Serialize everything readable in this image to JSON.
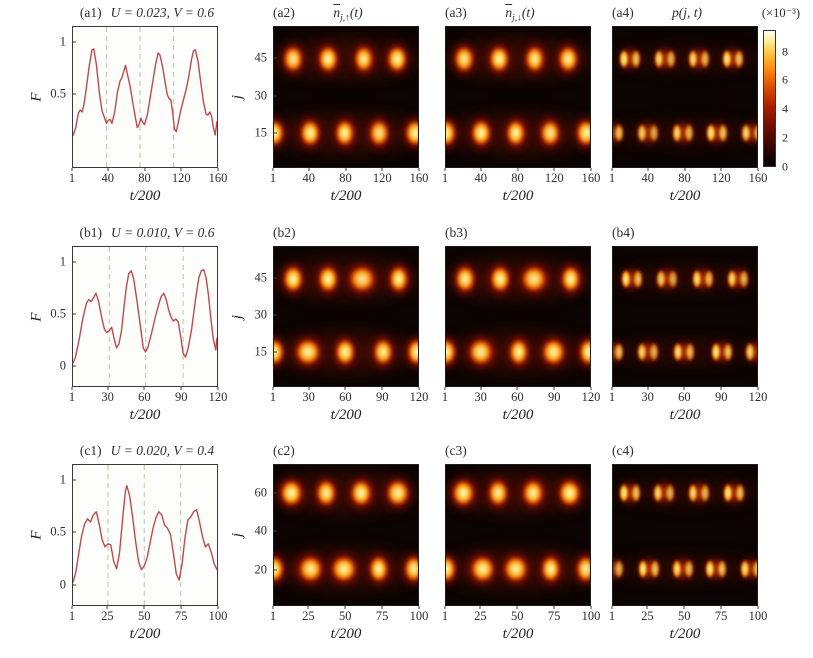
{
  "figure": {
    "curve_color": "#bf4a4a",
    "dashed_color": "#b9ccb4",
    "heat_background": "#0b0402",
    "text_color": "#2e2e2e"
  },
  "colorbar": {
    "label": "(×10⁻³)",
    "max": 9.5,
    "ticks": [
      {
        "v": 0,
        "label": "0"
      },
      {
        "v": 2,
        "label": "2"
      },
      {
        "v": 4,
        "label": "4"
      },
      {
        "v": 6,
        "label": "6"
      },
      {
        "v": 8,
        "label": "8"
      }
    ]
  },
  "chart_data": [
    {
      "id": "a1",
      "type": "line",
      "label": "(a1)",
      "params": "U = 0.023,  V = 0.6",
      "xlabel": "t/200",
      "ylabel": "F",
      "xlim": [
        1,
        160
      ],
      "ylim": [
        -0.2,
        1.15
      ],
      "x_ticks": [
        1,
        40,
        80,
        120,
        160
      ],
      "y_ticks": [
        {
          "v": 1,
          "label": "1"
        },
        {
          "v": 0.5,
          "label": "0.5"
        }
      ],
      "dashed_x": [
        38,
        75,
        112
      ],
      "curve": [
        [
          1,
          0.1
        ],
        [
          4,
          0.18
        ],
        [
          7,
          0.32
        ],
        [
          9,
          0.35
        ],
        [
          11,
          0.33
        ],
        [
          13,
          0.4
        ],
        [
          16,
          0.58
        ],
        [
          19,
          0.78
        ],
        [
          22,
          0.93
        ],
        [
          24,
          0.94
        ],
        [
          27,
          0.78
        ],
        [
          30,
          0.52
        ],
        [
          33,
          0.34
        ],
        [
          36,
          0.27
        ],
        [
          38,
          0.22
        ],
        [
          40,
          0.25
        ],
        [
          42,
          0.26
        ],
        [
          44,
          0.22
        ],
        [
          47,
          0.33
        ],
        [
          50,
          0.52
        ],
        [
          53,
          0.63
        ],
        [
          55,
          0.66
        ],
        [
          57,
          0.72
        ],
        [
          59,
          0.78
        ],
        [
          61,
          0.7
        ],
        [
          64,
          0.58
        ],
        [
          67,
          0.42
        ],
        [
          70,
          0.27
        ],
        [
          72,
          0.18
        ],
        [
          74,
          0.21
        ],
        [
          76,
          0.27
        ],
        [
          78,
          0.23
        ],
        [
          80,
          0.21
        ],
        [
          83,
          0.3
        ],
        [
          86,
          0.46
        ],
        [
          89,
          0.62
        ],
        [
          92,
          0.78
        ],
        [
          95,
          0.9
        ],
        [
          97,
          0.88
        ],
        [
          100,
          0.76
        ],
        [
          103,
          0.6
        ],
        [
          105,
          0.5
        ],
        [
          107,
          0.46
        ],
        [
          109,
          0.45
        ],
        [
          111,
          0.33
        ],
        [
          113,
          0.17
        ],
        [
          115,
          0.14
        ],
        [
          117,
          0.22
        ],
        [
          120,
          0.35
        ],
        [
          123,
          0.45
        ],
        [
          126,
          0.55
        ],
        [
          129,
          0.68
        ],
        [
          132,
          0.84
        ],
        [
          134,
          0.92
        ],
        [
          136,
          0.93
        ],
        [
          139,
          0.82
        ],
        [
          142,
          0.62
        ],
        [
          145,
          0.43
        ],
        [
          148,
          0.31
        ],
        [
          150,
          0.3
        ],
        [
          152,
          0.33
        ],
        [
          154,
          0.29
        ],
        [
          156,
          0.18
        ],
        [
          158,
          0.11
        ],
        [
          160,
          0.24
        ]
      ]
    },
    {
      "id": "a2",
      "type": "heatmap",
      "label": "(a2)",
      "title": {
        "main": "n",
        "bar": true,
        "sub": "j,↑",
        "tail": "(t)"
      },
      "xlabel": "t/200",
      "ylabel": "j",
      "xlim": [
        1,
        160
      ],
      "jlim": [
        1,
        58
      ],
      "x_ticks": [
        1,
        40,
        80,
        120,
        160
      ],
      "y_ticks": [
        15,
        30,
        45
      ],
      "blob": "single",
      "upper": {
        "j": 45,
        "t": [
          22,
          61,
          100,
          137
        ],
        "i": [
          0.9,
          1,
          0.92,
          1
        ]
      },
      "lower": {
        "j": 15,
        "t": [
          1,
          41,
          79,
          117,
          157
        ],
        "i": [
          1,
          1,
          1,
          0.88,
          1
        ]
      }
    },
    {
      "id": "a3",
      "type": "heatmap",
      "label": "(a3)",
      "title": {
        "main": "n",
        "bar": true,
        "sub": "j,↓",
        "tail": "(t)"
      },
      "xlabel": "t/200",
      "ylabel": "",
      "xlim": [
        1,
        160
      ],
      "jlim": [
        1,
        58
      ],
      "x_ticks": [
        1,
        40,
        80,
        120,
        160
      ],
      "y_ticks": null,
      "blob": "single",
      "upper": {
        "j": 45,
        "t": [
          21,
          60,
          99,
          136
        ],
        "i": [
          0.9,
          1,
          0.95,
          0.95
        ]
      },
      "lower": {
        "j": 15,
        "t": [
          1,
          40,
          78,
          116,
          156
        ],
        "i": [
          1,
          1,
          1,
          0.9,
          1
        ]
      }
    },
    {
      "id": "a4",
      "type": "heatmap",
      "label": "(a4)",
      "title": {
        "main": "p",
        "bar": false,
        "sub": "",
        "tail": "(j, t)"
      },
      "xlabel": "t/200",
      "ylabel": "",
      "xlim": [
        1,
        160
      ],
      "jlim": [
        1,
        58
      ],
      "x_ticks": [
        1,
        40,
        80,
        120,
        160
      ],
      "y_ticks": null,
      "blob": "double",
      "upper": {
        "j": 45,
        "t": [
          20,
          58,
          96,
          134
        ],
        "i": [
          1,
          0.9,
          0.92,
          1
        ]
      },
      "lower": {
        "j": 15,
        "t": [
          1,
          40,
          78,
          116,
          155
        ],
        "i": [
          1,
          0.85,
          0.92,
          1,
          0.9
        ]
      }
    },
    {
      "id": "b1",
      "type": "line",
      "label": "(b1)",
      "params": "U = 0.010,  V = 0.6",
      "xlabel": "t/200",
      "ylabel": "F",
      "xlim": [
        1,
        120
      ],
      "ylim": [
        -0.2,
        1.15
      ],
      "x_ticks": [
        1,
        30,
        60,
        90,
        120
      ],
      "y_ticks": [
        {
          "v": 1,
          "label": "1"
        },
        {
          "v": 0.5,
          "label": "0.5"
        },
        {
          "v": 0,
          "label": "0"
        }
      ],
      "dashed_x": [
        31,
        61,
        92
      ],
      "curve": [
        [
          1,
          0.02
        ],
        [
          3,
          0.08
        ],
        [
          6,
          0.25
        ],
        [
          9,
          0.45
        ],
        [
          12,
          0.6
        ],
        [
          14,
          0.64
        ],
        [
          16,
          0.62
        ],
        [
          18,
          0.66
        ],
        [
          20,
          0.7
        ],
        [
          22,
          0.63
        ],
        [
          25,
          0.45
        ],
        [
          27,
          0.35
        ],
        [
          29,
          0.32
        ],
        [
          31,
          0.34
        ],
        [
          33,
          0.37
        ],
        [
          35,
          0.26
        ],
        [
          37,
          0.17
        ],
        [
          39,
          0.21
        ],
        [
          41,
          0.33
        ],
        [
          43,
          0.55
        ],
        [
          45,
          0.75
        ],
        [
          47,
          0.89
        ],
        [
          49,
          0.92
        ],
        [
          51,
          0.85
        ],
        [
          54,
          0.62
        ],
        [
          57,
          0.35
        ],
        [
          59,
          0.17
        ],
        [
          61,
          0.13
        ],
        [
          63,
          0.18
        ],
        [
          66,
          0.32
        ],
        [
          69,
          0.47
        ],
        [
          72,
          0.6
        ],
        [
          74,
          0.67
        ],
        [
          76,
          0.7
        ],
        [
          78,
          0.64
        ],
        [
          80,
          0.54
        ],
        [
          82,
          0.47
        ],
        [
          84,
          0.43
        ],
        [
          86,
          0.45
        ],
        [
          88,
          0.42
        ],
        [
          90,
          0.28
        ],
        [
          92,
          0.12
        ],
        [
          94,
          0.08
        ],
        [
          96,
          0.16
        ],
        [
          99,
          0.35
        ],
        [
          102,
          0.62
        ],
        [
          105,
          0.85
        ],
        [
          107,
          0.92
        ],
        [
          109,
          0.93
        ],
        [
          111,
          0.85
        ],
        [
          113,
          0.68
        ],
        [
          115,
          0.45
        ],
        [
          117,
          0.25
        ],
        [
          119,
          0.15
        ],
        [
          120,
          0.27
        ]
      ]
    },
    {
      "id": "b2",
      "type": "heatmap",
      "label": "(b2)",
      "title": null,
      "xlabel": "t/200",
      "ylabel": "j",
      "xlim": [
        1,
        120
      ],
      "jlim": [
        1,
        58
      ],
      "x_ticks": [
        1,
        30,
        60,
        90,
        120
      ],
      "y_ticks": [
        15,
        30,
        45
      ],
      "blob": "single",
      "upper": {
        "j": 45,
        "t": [
          17,
          46,
          74,
          104
        ],
        "i": [
          1,
          1,
          0.85,
          1
        ],
        "s": [
          1,
          1,
          1.35,
          1
        ]
      },
      "lower": {
        "j": 15,
        "t": [
          1,
          29,
          60,
          91,
          119
        ],
        "i": [
          1,
          0.95,
          1,
          0.95,
          1
        ],
        "s": [
          1,
          1.3,
          1,
          1,
          1
        ]
      }
    },
    {
      "id": "b3",
      "type": "heatmap",
      "label": "(b3)",
      "title": null,
      "xlabel": "t/200",
      "ylabel": "",
      "xlim": [
        1,
        120
      ],
      "jlim": [
        1,
        58
      ],
      "x_ticks": [
        1,
        30,
        60,
        90,
        120
      ],
      "y_ticks": null,
      "blob": "single",
      "upper": {
        "j": 45,
        "t": [
          17,
          46,
          74,
          104
        ],
        "i": [
          0.95,
          1,
          0.88,
          1
        ],
        "s": [
          1,
          1,
          1.3,
          1
        ]
      },
      "lower": {
        "j": 15,
        "t": [
          1,
          30,
          61,
          90,
          119
        ],
        "i": [
          1,
          0.92,
          1,
          0.95,
          1
        ],
        "s": [
          1,
          1.25,
          1,
          1.2,
          1
        ]
      }
    },
    {
      "id": "b4",
      "type": "heatmap",
      "label": "(b4)",
      "title": null,
      "xlabel": "t/200",
      "ylabel": "",
      "xlim": [
        1,
        120
      ],
      "jlim": [
        1,
        58
      ],
      "x_ticks": [
        1,
        30,
        60,
        90,
        120
      ],
      "y_ticks": null,
      "blob": "double",
      "upper": {
        "j": 45,
        "t": [
          17,
          46,
          75,
          104
        ],
        "i": [
          1,
          0.85,
          0.95,
          0.9
        ]
      },
      "lower": {
        "j": 15,
        "t": [
          1,
          30,
          60,
          91,
          119
        ],
        "i": [
          1,
          0.9,
          0.95,
          1,
          0.9
        ]
      }
    },
    {
      "id": "c1",
      "type": "line",
      "label": "(c1)",
      "params": "U = 0.020,  V = 0.4",
      "xlabel": "t/200",
      "ylabel": "F",
      "xlim": [
        1,
        100
      ],
      "ylim": [
        -0.2,
        1.15
      ],
      "x_ticks": [
        1,
        25,
        50,
        75,
        100
      ],
      "y_ticks": [
        {
          "v": 1,
          "label": "1"
        },
        {
          "v": 0.5,
          "label": "0.5"
        },
        {
          "v": 0,
          "label": "0"
        }
      ],
      "dashed_x": [
        25,
        50,
        75
      ],
      "curve": [
        [
          1,
          0.02
        ],
        [
          3,
          0.12
        ],
        [
          5,
          0.3
        ],
        [
          7,
          0.47
        ],
        [
          9,
          0.58
        ],
        [
          11,
          0.63
        ],
        [
          13,
          0.6
        ],
        [
          15,
          0.67
        ],
        [
          17,
          0.7
        ],
        [
          19,
          0.58
        ],
        [
          21,
          0.43
        ],
        [
          23,
          0.36
        ],
        [
          25,
          0.39
        ],
        [
          27,
          0.38
        ],
        [
          29,
          0.22
        ],
        [
          31,
          0.15
        ],
        [
          33,
          0.3
        ],
        [
          35,
          0.62
        ],
        [
          37,
          0.9
        ],
        [
          38,
          0.95
        ],
        [
          40,
          0.85
        ],
        [
          42,
          0.65
        ],
        [
          44,
          0.42
        ],
        [
          46,
          0.22
        ],
        [
          48,
          0.14
        ],
        [
          50,
          0.18
        ],
        [
          52,
          0.26
        ],
        [
          54,
          0.4
        ],
        [
          56,
          0.54
        ],
        [
          58,
          0.64
        ],
        [
          60,
          0.7
        ],
        [
          62,
          0.67
        ],
        [
          64,
          0.57
        ],
        [
          66,
          0.54
        ],
        [
          68,
          0.48
        ],
        [
          70,
          0.3
        ],
        [
          72,
          0.1
        ],
        [
          74,
          0.04
        ],
        [
          76,
          0.2
        ],
        [
          78,
          0.45
        ],
        [
          80,
          0.62
        ],
        [
          82,
          0.65
        ],
        [
          84,
          0.7
        ],
        [
          86,
          0.72
        ],
        [
          88,
          0.6
        ],
        [
          90,
          0.46
        ],
        [
          92,
          0.36
        ],
        [
          94,
          0.39
        ],
        [
          96,
          0.31
        ],
        [
          98,
          0.2
        ],
        [
          100,
          0.14
        ]
      ]
    },
    {
      "id": "c2",
      "type": "heatmap",
      "label": "(c2)",
      "title": null,
      "xlabel": "t/200",
      "ylabel": "j",
      "xlim": [
        1,
        100
      ],
      "jlim": [
        1,
        75
      ],
      "x_ticks": [
        1,
        25,
        50,
        75,
        100
      ],
      "y_ticks": [
        20,
        40,
        60
      ],
      "blob": "single",
      "upper": {
        "j": 60,
        "t": [
          13,
          37,
          61,
          86
        ],
        "i": [
          1,
          0.95,
          1,
          0.95
        ],
        "s": [
          1.15,
          1,
          1.1,
          1.15
        ]
      },
      "lower": {
        "j": 20,
        "t": [
          1,
          26,
          49,
          73,
          97
        ],
        "i": [
          1,
          0.92,
          0.95,
          1,
          0.95
        ],
        "s": [
          1,
          1.25,
          1.3,
          1,
          1
        ]
      }
    },
    {
      "id": "c3",
      "type": "heatmap",
      "label": "(c3)",
      "title": null,
      "xlabel": "t/200",
      "ylabel": "",
      "xlim": [
        1,
        100
      ],
      "jlim": [
        1,
        75
      ],
      "x_ticks": [
        1,
        25,
        50,
        75,
        100
      ],
      "y_ticks": null,
      "blob": "single",
      "upper": {
        "j": 60,
        "t": [
          13,
          37,
          61,
          86
        ],
        "i": [
          1,
          0.95,
          0.95,
          1
        ],
        "s": [
          1.15,
          1,
          1.1,
          1.1
        ]
      },
      "lower": {
        "j": 20,
        "t": [
          1,
          26,
          49,
          73,
          97
        ],
        "i": [
          1,
          0.95,
          0.95,
          1,
          0.95
        ],
        "s": [
          1,
          1.25,
          1.25,
          1,
          1
        ]
      }
    },
    {
      "id": "c4",
      "type": "heatmap",
      "label": "(c4)",
      "title": null,
      "xlabel": "t/200",
      "ylabel": "",
      "xlim": [
        1,
        100
      ],
      "jlim": [
        1,
        75
      ],
      "x_ticks": [
        1,
        25,
        50,
        75,
        100
      ],
      "y_ticks": null,
      "blob": "double",
      "upper": {
        "j": 60,
        "t": [
          13,
          36,
          60,
          84
        ],
        "i": [
          1,
          0.9,
          0.92,
          1
        ]
      },
      "lower": {
        "j": 20,
        "t": [
          1,
          26,
          49,
          72,
          96
        ],
        "i": [
          0.9,
          1,
          0.95,
          1,
          0.95
        ]
      }
    }
  ]
}
